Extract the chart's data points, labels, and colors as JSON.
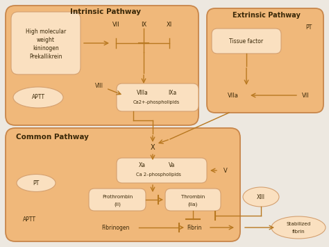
{
  "bg_color": "#ede8e0",
  "box_facecolor": "#f0b87a",
  "box_edgecolor": "#c8864a",
  "inner_box_facecolor": "#fae0c0",
  "inner_box_edgecolor": "#d4a070",
  "arrow_color": "#b87820",
  "text_color": "#3a2808",
  "intrinsic_title": "Intrinsic Pathway",
  "common_title": "Common Pathway",
  "extrinsic_title": "Extrinsic Pathway"
}
